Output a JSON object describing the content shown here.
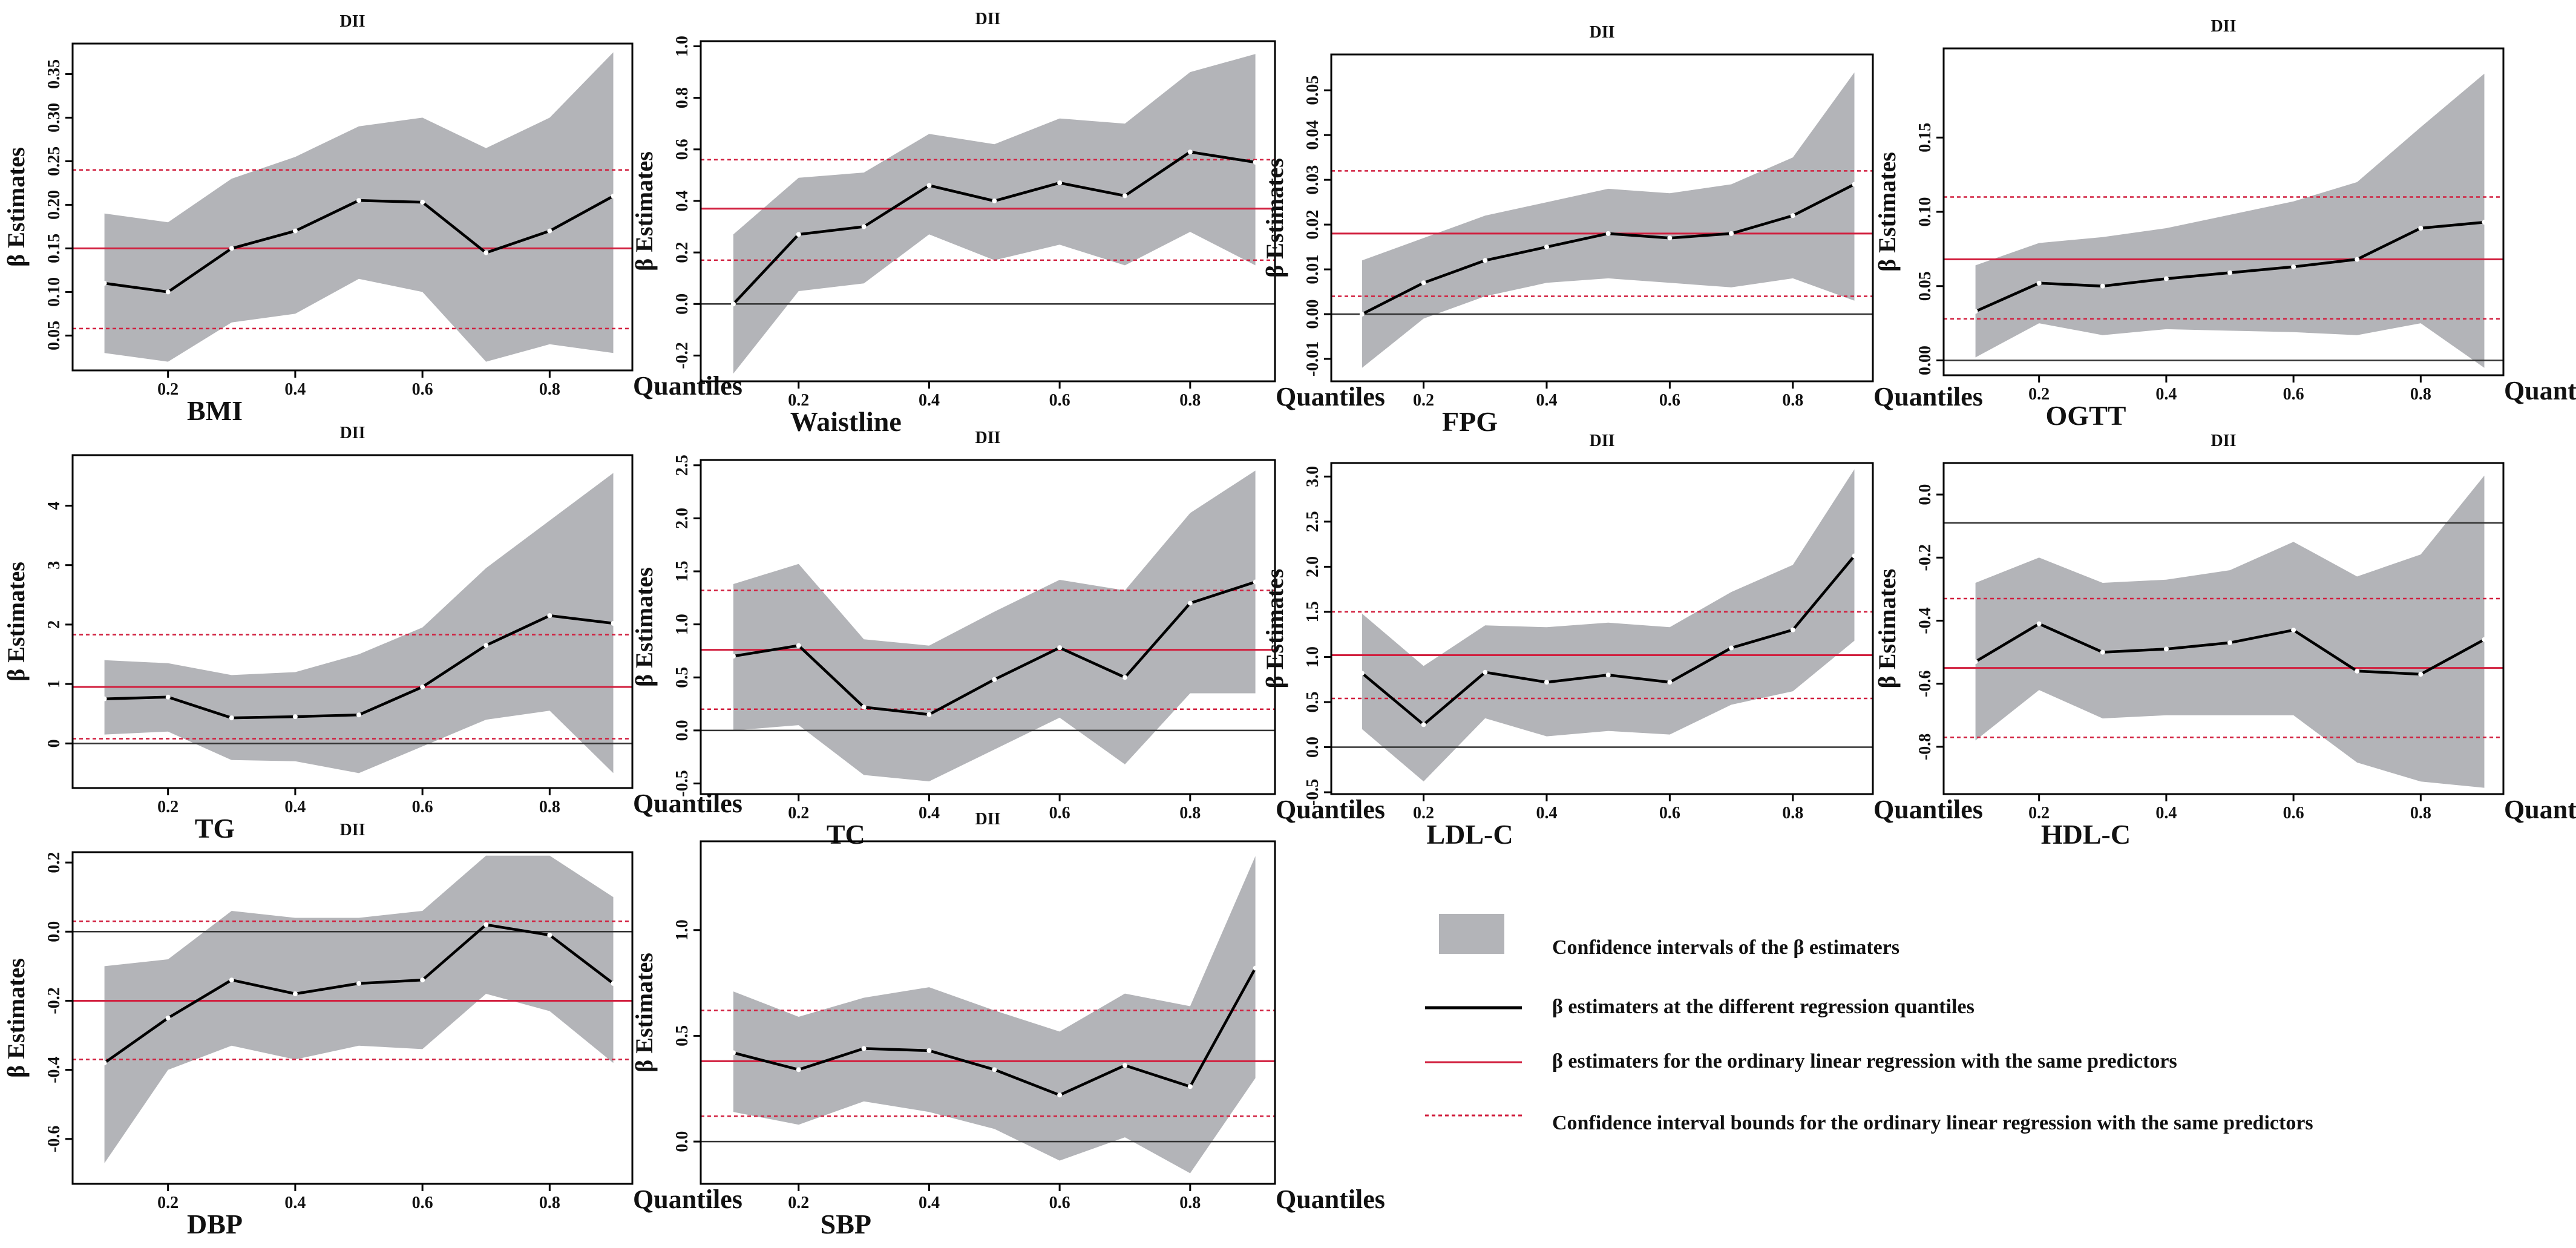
{
  "colors": {
    "band": "#b3b4b8",
    "line": "#000000",
    "ols": "#d11f3e",
    "ci": "#d11f3e",
    "axis": "#000000",
    "zero": "#333333"
  },
  "legend": {
    "band_label": "Confidence intervals of  the β estimaters",
    "line_label": "β estimaters at the different regression quantiles",
    "ols_label": "β estimaters for the ordinary linear regression with the same predictors",
    "ci_label": "Confidence interval bounds for   the ordinary linear regression with the same predictors"
  },
  "chart_data": [
    {
      "type": "line",
      "name": "BMI",
      "title": "DII",
      "xlabel": "Quantiles",
      "ylabel": "β Estimates",
      "x": [
        0.1,
        0.2,
        0.3,
        0.4,
        0.5,
        0.6,
        0.7,
        0.8,
        0.9
      ],
      "values": [
        0.11,
        0.1,
        0.15,
        0.17,
        0.205,
        0.203,
        0.145,
        0.17,
        0.21
      ],
      "lower": [
        0.03,
        0.02,
        0.065,
        0.075,
        0.115,
        0.1,
        0.02,
        0.04,
        0.03
      ],
      "upper": [
        0.19,
        0.18,
        0.23,
        0.255,
        0.29,
        0.3,
        0.265,
        0.3,
        0.375
      ],
      "ols": 0.15,
      "ols_ci": [
        0.058,
        0.24
      ],
      "xlim": [
        0.05,
        0.93
      ],
      "ylim": [
        0.01,
        0.385
      ],
      "xticks": [
        "0.2",
        "0.4",
        "0.6",
        "0.8"
      ],
      "yticks": [
        "0.05",
        "0.10",
        "0.15",
        "0.20",
        "0.25",
        "0.30",
        "0.35"
      ]
    },
    {
      "type": "line",
      "name": "Waistline",
      "title": "DII",
      "xlabel": "Quantiles",
      "ylabel": "β Estimates",
      "x": [
        0.1,
        0.2,
        0.3,
        0.4,
        0.5,
        0.6,
        0.7,
        0.8,
        0.9
      ],
      "values": [
        0.0,
        0.27,
        0.3,
        0.46,
        0.4,
        0.47,
        0.42,
        0.59,
        0.55
      ],
      "lower": [
        -0.27,
        0.05,
        0.08,
        0.27,
        0.17,
        0.23,
        0.15,
        0.28,
        0.15
      ],
      "upper": [
        0.27,
        0.49,
        0.51,
        0.66,
        0.62,
        0.72,
        0.7,
        0.9,
        0.97
      ],
      "ols": 0.37,
      "ols_ci": [
        0.17,
        0.56
      ],
      "xlim": [
        0.05,
        0.93
      ],
      "ylim": [
        -0.3,
        1.02
      ],
      "zero": 0,
      "xticks": [
        "0.2",
        "0.4",
        "0.6",
        "0.8"
      ],
      "yticks": [
        "-0.2",
        "0.0",
        "0.2",
        "0.4",
        "0.6",
        "0.8",
        "1.0"
      ]
    },
    {
      "type": "line",
      "name": "FPG",
      "title": "DII",
      "xlabel": "Quantiles",
      "ylabel": "β Estimates",
      "x": [
        0.1,
        0.2,
        0.3,
        0.4,
        0.5,
        0.6,
        0.7,
        0.8,
        0.9
      ],
      "values": [
        0.0,
        0.007,
        0.012,
        0.015,
        0.018,
        0.017,
        0.018,
        0.022,
        0.029
      ],
      "lower": [
        -0.012,
        -0.001,
        0.004,
        0.007,
        0.008,
        0.007,
        0.006,
        0.008,
        0.003
      ],
      "upper": [
        0.012,
        0.017,
        0.022,
        0.025,
        0.028,
        0.027,
        0.029,
        0.035,
        0.054
      ],
      "ols": 0.018,
      "ols_ci": [
        0.004,
        0.032
      ],
      "xlim": [
        0.05,
        0.93
      ],
      "ylim": [
        -0.015,
        0.058
      ],
      "zero": 0,
      "xticks": [
        "0.2",
        "0.4",
        "0.6",
        "0.8"
      ],
      "yticks": [
        "-0.01",
        "0.00",
        "0.01",
        "0.02",
        "0.03",
        "0.04",
        "0.05"
      ]
    },
    {
      "type": "line",
      "name": "OGTT",
      "title": "DII",
      "xlabel": "Quantiles",
      "ylabel": "β Estimates",
      "x": [
        0.1,
        0.2,
        0.3,
        0.4,
        0.5,
        0.6,
        0.7,
        0.8,
        0.9
      ],
      "values": [
        0.033,
        0.052,
        0.05,
        0.055,
        0.059,
        0.063,
        0.068,
        0.089,
        0.093
      ],
      "lower": [
        0.002,
        0.025,
        0.017,
        0.021,
        0.02,
        0.019,
        0.017,
        0.025,
        -0.005
      ],
      "upper": [
        0.064,
        0.079,
        0.083,
        0.089,
        0.098,
        0.107,
        0.12,
        0.157,
        0.193
      ],
      "ols": 0.068,
      "ols_ci": [
        0.028,
        0.11
      ],
      "xlim": [
        0.05,
        0.93
      ],
      "ylim": [
        -0.01,
        0.21
      ],
      "zero": 0,
      "xticks": [
        "0.2",
        "0.4",
        "0.6",
        "0.8"
      ],
      "yticks": [
        "0.00",
        "0.05",
        "0.10",
        "0.15"
      ]
    },
    {
      "type": "line",
      "name": "TG",
      "title": "DII",
      "xlabel": "Quantiles",
      "ylabel": "β Estimates",
      "x": [
        0.1,
        0.2,
        0.3,
        0.4,
        0.5,
        0.6,
        0.7,
        0.8,
        0.9
      ],
      "values": [
        0.75,
        0.78,
        0.43,
        0.45,
        0.48,
        0.95,
        1.65,
        2.15,
        2.02
      ],
      "lower": [
        0.15,
        0.2,
        -0.28,
        -0.3,
        -0.5,
        -0.05,
        0.4,
        0.55,
        -0.5
      ],
      "upper": [
        1.4,
        1.35,
        1.15,
        1.2,
        1.5,
        1.95,
        2.95,
        3.75,
        4.55
      ],
      "ols": 0.95,
      "ols_ci": [
        0.08,
        1.83
      ],
      "xlim": [
        0.05,
        0.93
      ],
      "ylim": [
        -0.75,
        4.85
      ],
      "zero": 0,
      "xticks": [
        "0.2",
        "0.4",
        "0.6",
        "0.8"
      ],
      "yticks": [
        "0",
        "1",
        "2",
        "3",
        "4"
      ]
    },
    {
      "type": "line",
      "name": "TC",
      "title": "DII",
      "xlabel": "Quantiles",
      "ylabel": "β Estimates",
      "x": [
        0.1,
        0.2,
        0.3,
        0.4,
        0.5,
        0.6,
        0.7,
        0.8,
        0.9
      ],
      "values": [
        0.7,
        0.8,
        0.22,
        0.15,
        0.48,
        0.78,
        0.5,
        1.2,
        1.4
      ],
      "lower": [
        0.0,
        0.05,
        -0.42,
        -0.48,
        -0.18,
        0.12,
        -0.32,
        0.35,
        0.35
      ],
      "upper": [
        1.38,
        1.57,
        0.86,
        0.8,
        1.12,
        1.42,
        1.32,
        2.05,
        2.45
      ],
      "ols": 0.76,
      "ols_ci": [
        0.2,
        1.32
      ],
      "xlim": [
        0.05,
        0.93
      ],
      "ylim": [
        -0.6,
        2.55
      ],
      "zero": 0,
      "xticks": [
        "0.2",
        "0.4",
        "0.6",
        "0.8"
      ],
      "yticks": [
        "-0.5",
        "0.0",
        "0.5",
        "1.0",
        "1.5",
        "2.0",
        "2.5"
      ]
    },
    {
      "type": "line",
      "name": "LDL-C",
      "title": "DII",
      "xlabel": "Quantiles",
      "ylabel": "β Estimates",
      "x": [
        0.1,
        0.2,
        0.3,
        0.4,
        0.5,
        0.6,
        0.7,
        0.8,
        0.9
      ],
      "values": [
        0.82,
        0.25,
        0.83,
        0.72,
        0.8,
        0.72,
        1.1,
        1.3,
        2.12
      ],
      "lower": [
        0.2,
        -0.38,
        0.32,
        0.12,
        0.18,
        0.14,
        0.47,
        0.62,
        1.18
      ],
      "upper": [
        1.48,
        0.9,
        1.35,
        1.33,
        1.38,
        1.33,
        1.72,
        2.02,
        3.08
      ],
      "ols": 1.02,
      "ols_ci": [
        0.54,
        1.5
      ],
      "xlim": [
        0.05,
        0.93
      ],
      "ylim": [
        -0.52,
        3.15
      ],
      "zero": 0,
      "xticks": [
        "0.2",
        "0.4",
        "0.6",
        "0.8"
      ],
      "yticks": [
        "-0.5",
        "0.0",
        "0.5",
        "1.0",
        "1.5",
        "2.0",
        "2.5",
        "3.0"
      ]
    },
    {
      "type": "line",
      "name": "HDL-C",
      "title": "DII",
      "xlabel": "Quantiles",
      "ylabel": "β Estimates",
      "x": [
        0.1,
        0.2,
        0.3,
        0.4,
        0.5,
        0.6,
        0.7,
        0.8,
        0.9
      ],
      "values": [
        -0.53,
        -0.41,
        -0.5,
        -0.49,
        -0.47,
        -0.43,
        -0.56,
        -0.57,
        -0.46
      ],
      "lower": [
        -0.78,
        -0.62,
        -0.71,
        -0.7,
        -0.7,
        -0.7,
        -0.85,
        -0.91,
        -0.93
      ],
      "upper": [
        -0.28,
        -0.2,
        -0.28,
        -0.27,
        -0.24,
        -0.15,
        -0.26,
        -0.19,
        0.06
      ],
      "ols": -0.55,
      "ols_ci": [
        -0.77,
        -0.33
      ],
      "xlim": [
        0.05,
        0.93
      ],
      "ylim": [
        -0.95,
        0.1
      ],
      "zero": -0.09,
      "xticks": [
        "0.2",
        "0.4",
        "0.6",
        "0.8"
      ],
      "yticks": [
        "-0.8",
        "-0.6",
        "-0.4",
        "-0.2",
        "0.0"
      ]
    },
    {
      "type": "line",
      "name": "DBP",
      "title": "DII",
      "xlabel": "Quantiles",
      "ylabel": "β Estimates",
      "x": [
        0.1,
        0.2,
        0.3,
        0.4,
        0.5,
        0.6,
        0.7,
        0.8,
        0.9
      ],
      "values": [
        -0.38,
        -0.25,
        -0.14,
        -0.18,
        -0.15,
        -0.14,
        0.02,
        -0.01,
        -0.15
      ],
      "lower": [
        -0.67,
        -0.4,
        -0.33,
        -0.37,
        -0.33,
        -0.34,
        -0.18,
        -0.23,
        -0.38
      ],
      "upper": [
        -0.1,
        -0.08,
        0.06,
        0.04,
        0.04,
        0.06,
        0.22,
        0.22,
        0.1
      ],
      "ols": -0.2,
      "ols_ci": [
        -0.37,
        0.03
      ],
      "xlim": [
        0.05,
        0.93
      ],
      "ylim": [
        -0.73,
        0.23
      ],
      "zero": 0,
      "xticks": [
        "0.2",
        "0.4",
        "0.6",
        "0.8"
      ],
      "yticks": [
        "-0.6",
        "-0.4",
        "-0.2",
        "0.0",
        "0.2"
      ]
    },
    {
      "type": "line",
      "name": "SBP",
      "title": "DII",
      "xlabel": "Quantiles",
      "ylabel": "β Estimates",
      "x": [
        0.1,
        0.2,
        0.3,
        0.4,
        0.5,
        0.6,
        0.7,
        0.8,
        0.9
      ],
      "values": [
        0.42,
        0.34,
        0.44,
        0.43,
        0.34,
        0.22,
        0.36,
        0.26,
        0.82
      ],
      "lower": [
        0.14,
        0.08,
        0.19,
        0.14,
        0.06,
        -0.09,
        0.02,
        -0.15,
        0.3
      ],
      "upper": [
        0.71,
        0.59,
        0.68,
        0.73,
        0.62,
        0.52,
        0.7,
        0.64,
        1.35
      ],
      "ols": 0.38,
      "ols_ci": [
        0.12,
        0.62
      ],
      "xlim": [
        0.05,
        0.93
      ],
      "ylim": [
        -0.2,
        1.42
      ],
      "zero": 0,
      "xticks": [
        "0.2",
        "0.4",
        "0.6",
        "0.8"
      ],
      "yticks": [
        "0.0",
        "0.5",
        "1.0"
      ]
    }
  ]
}
